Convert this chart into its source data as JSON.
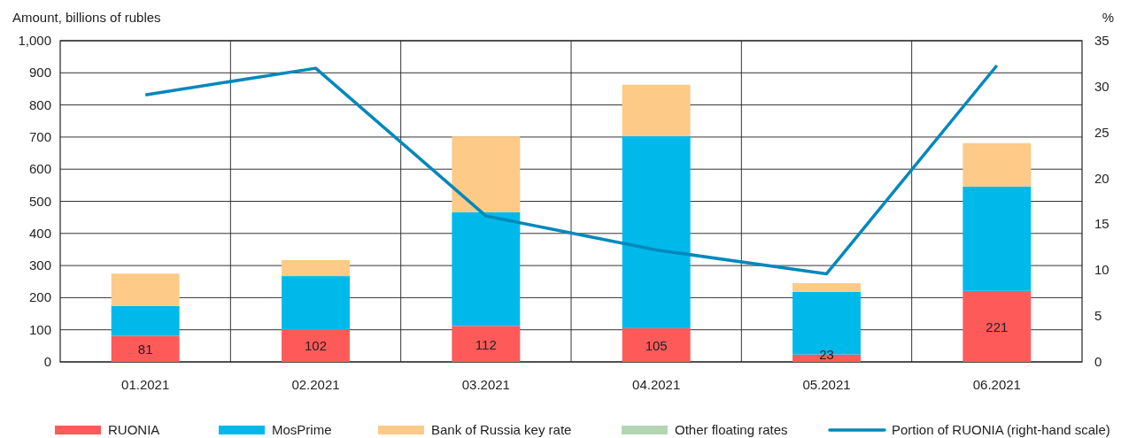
{
  "chart_data": {
    "type": "bar",
    "stacked": true,
    "ylabel": "Amount, billions of rubles",
    "y2label": "%",
    "categories": [
      "01.2021",
      "02.2021",
      "03.2021",
      "04.2021",
      "05.2021",
      "06.2021"
    ],
    "series": [
      {
        "name": "RUONIA",
        "color": "#ff5a5a",
        "values": [
          81,
          102,
          112,
          105,
          23,
          221
        ],
        "value_labels": [
          "81",
          "102",
          "112",
          "105",
          "23",
          "221"
        ]
      },
      {
        "name": "MosPrime",
        "color": "#00b9eb",
        "values": [
          93,
          165,
          354,
          598,
          195,
          325
        ]
      },
      {
        "name": "Bank of Russia key rate",
        "color": "#fdca87",
        "values": [
          101,
          50,
          236,
          160,
          27,
          135
        ]
      },
      {
        "name": "Other floating rates",
        "color": "#b3d6b5",
        "values": [
          0,
          0,
          0,
          0,
          0,
          0
        ]
      },
      {
        "name": "Portion of RUONIA (right-hand scale)",
        "type": "line",
        "axis": "y2",
        "color": "#0088bb",
        "values": [
          29.1,
          32.0,
          15.9,
          12.2,
          9.6,
          32.3
        ]
      }
    ],
    "ylim": [
      0,
      1000
    ],
    "yticks": [
      {
        "value": 0,
        "label": "0"
      },
      {
        "value": 100,
        "label": "100"
      },
      {
        "value": 200,
        "label": "200"
      },
      {
        "value": 300,
        "label": "300"
      },
      {
        "value": 400,
        "label": "400"
      },
      {
        "value": 500,
        "label": "500"
      },
      {
        "value": 600,
        "label": "600"
      },
      {
        "value": 700,
        "label": "700"
      },
      {
        "value": 800,
        "label": "800"
      },
      {
        "value": 900,
        "label": "900"
      },
      {
        "value": 1000,
        "label": "1,000"
      }
    ],
    "y2lim": [
      0,
      35
    ],
    "y2ticks": [
      0,
      5,
      10,
      15,
      20,
      25,
      30,
      35
    ],
    "grid": true,
    "legend": "bottom",
    "marker": "none",
    "line_style": "solid"
  }
}
